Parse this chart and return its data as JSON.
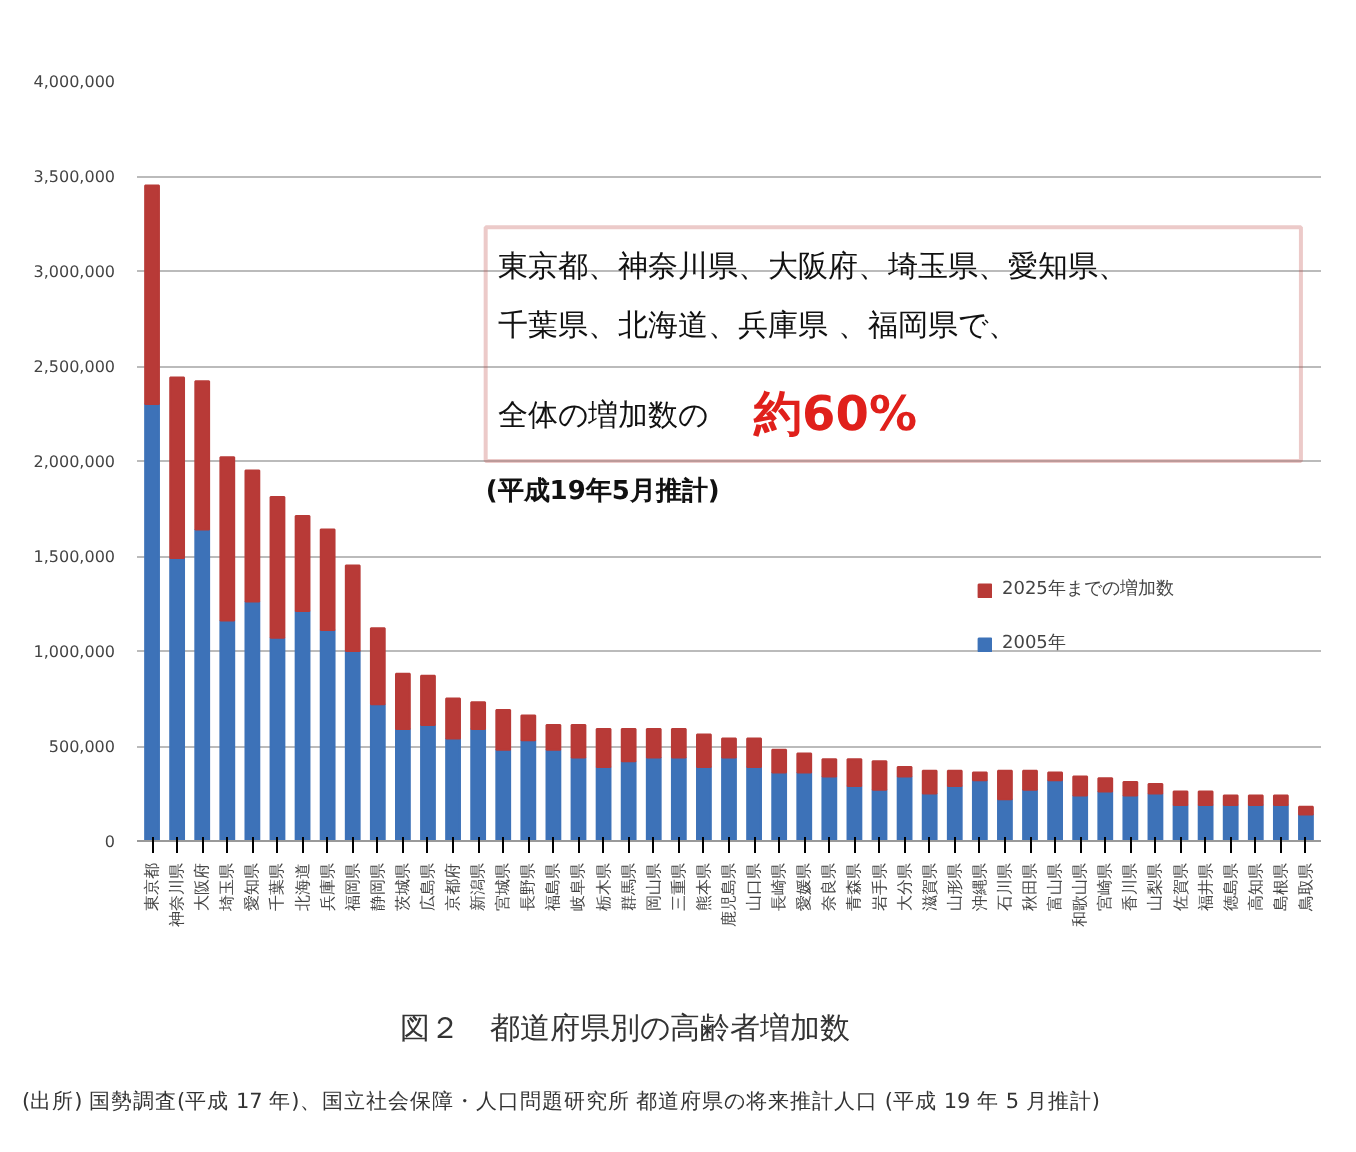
{
  "chart_data": {
    "type": "bar",
    "stacked": true,
    "categories": [
      "東京都",
      "神奈川県",
      "大阪府",
      "埼玉県",
      "愛知県",
      "千葉県",
      "北海道",
      "兵庫県",
      "福岡県",
      "静岡県",
      "茨城県",
      "広島県",
      "京都府",
      "新潟県",
      "宮城県",
      "長野県",
      "福島県",
      "岐阜県",
      "栃木県",
      "群馬県",
      "岡山県",
      "三重県",
      "熊本県",
      "鹿児島県",
      "山口県",
      "長崎県",
      "愛媛県",
      "奈良県",
      "青森県",
      "岩手県",
      "大分県",
      "滋賀県",
      "山形県",
      "沖縄県",
      "石川県",
      "秋田県",
      "富山県",
      "和歌山県",
      "宮崎県",
      "香川県",
      "山梨県",
      "佐賀県",
      "福井県",
      "徳島県",
      "高知県",
      "島根県",
      "鳥取県"
    ],
    "series": [
      {
        "name": "2005年",
        "color": "#3d72b8",
        "values": [
          2300000,
          1490000,
          1640000,
          1160000,
          1260000,
          1070000,
          1210000,
          1110000,
          1000000,
          720000,
          590000,
          610000,
          540000,
          590000,
          480000,
          530000,
          480000,
          440000,
          390000,
          420000,
          440000,
          440000,
          390000,
          440000,
          390000,
          360000,
          360000,
          340000,
          290000,
          270000,
          340000,
          250000,
          290000,
          320000,
          220000,
          270000,
          320000,
          240000,
          260000,
          240000,
          250000,
          190000,
          190000,
          190000,
          190000,
          190000,
          140000
        ]
      },
      {
        "name": "2025年までの増加数",
        "color": "#b83a37",
        "values": [
          1150000,
          950000,
          780000,
          860000,
          690000,
          740000,
          500000,
          530000,
          450000,
          400000,
          290000,
          260000,
          210000,
          140000,
          210000,
          130000,
          130000,
          170000,
          200000,
          170000,
          150000,
          150000,
          170000,
          100000,
          150000,
          120000,
          100000,
          90000,
          140000,
          150000,
          50000,
          120000,
          80000,
          40000,
          150000,
          100000,
          40000,
          100000,
          70000,
          70000,
          50000,
          70000,
          70000,
          50000,
          50000,
          50000,
          40000
        ]
      }
    ],
    "ylim": [
      0,
      4000000
    ],
    "yticks": [
      {
        "value": 0,
        "label": "0"
      },
      {
        "value": 500000,
        "label": "500,000"
      },
      {
        "value": 1000000,
        "label": "1,000,000"
      },
      {
        "value": 1500000,
        "label": "1,500,000"
      },
      {
        "value": 2000000,
        "label": "2,000,000"
      },
      {
        "value": 2500000,
        "label": "2,500,000"
      },
      {
        "value": 3000000,
        "label": "3,000,000"
      },
      {
        "value": 3500000,
        "label": "3,500,000"
      },
      {
        "value": 4000000,
        "label": "4,000,000"
      }
    ],
    "grid": "y",
    "legend": "right",
    "annotations": [
      "東京都、神奈川県、大阪府、埼玉県、愛知県、",
      "千葉県、北海道、兵庫県 、福岡県で、",
      "全体の増加数の",
      "約60%",
      "(平成19年5月推計)",
      "図２　都道府県別の高齢者増加数",
      "(出所) 国勢調査(平成 17 年)、国立社会保障・人口問題研究所 都道府県の将来推計人口 (平成 19 年 5 月推計)"
    ]
  }
}
